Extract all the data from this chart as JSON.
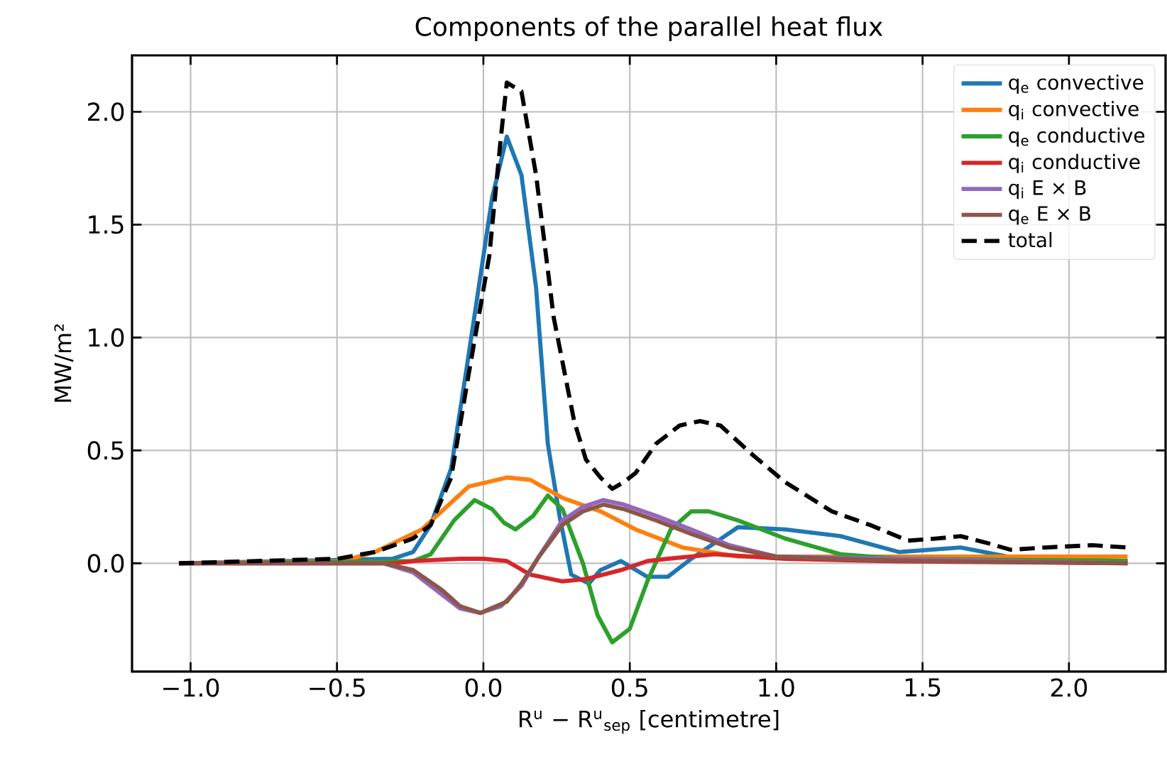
{
  "chart_data": {
    "type": "line",
    "title": "Components of the parallel heat flux",
    "xlabel": "R$^{u}$ − R$^{u}$$_{sep}$ [centimetre]",
    "ylabel": "MW/m²",
    "xlim": [
      -1.2,
      2.33
    ],
    "ylim": [
      -0.48,
      2.25
    ],
    "xticks": [
      {
        "value": -1.0,
        "label": "−1.0"
      },
      {
        "value": -0.5,
        "label": "−0.5"
      },
      {
        "value": 0.0,
        "label": "0.0"
      },
      {
        "value": 0.5,
        "label": "0.5"
      },
      {
        "value": 1.0,
        "label": "1.0"
      },
      {
        "value": 1.5,
        "label": "1.5"
      },
      {
        "value": 2.0,
        "label": "2.0"
      }
    ],
    "yticks": [
      {
        "value": 0.0,
        "label": "0.0"
      },
      {
        "value": 0.5,
        "label": "0.5"
      },
      {
        "value": 1.0,
        "label": "1.0"
      },
      {
        "value": 1.5,
        "label": "1.5"
      },
      {
        "value": 2.0,
        "label": "2.0"
      }
    ],
    "grid": true,
    "legend": "top right",
    "series": [
      {
        "name": "q$_{e}$ convective",
        "color": "#1f77b4",
        "line_style": "solid",
        "x": [
          -1.04,
          -0.31,
          -0.24,
          -0.18,
          -0.11,
          -0.06,
          0.0,
          0.03,
          0.08,
          0.13,
          0.18,
          0.22,
          0.26,
          0.3,
          0.36,
          0.4,
          0.47,
          0.56,
          0.63,
          0.71,
          0.87,
          1.03,
          1.22,
          1.42,
          1.63,
          1.79,
          2.2
        ],
        "values": [
          0,
          0.02,
          0.05,
          0.17,
          0.42,
          0.84,
          1.36,
          1.62,
          1.89,
          1.72,
          1.22,
          0.53,
          0.21,
          -0.05,
          -0.09,
          -0.03,
          0.01,
          -0.06,
          -0.06,
          0.02,
          0.16,
          0.15,
          0.12,
          0.05,
          0.07,
          0.03,
          0.01
        ]
      },
      {
        "name": "q$_{i}$ convective",
        "color": "#ff7f0e",
        "line_style": "solid",
        "x": [
          -1.04,
          -0.48,
          -0.37,
          -0.21,
          -0.05,
          0.08,
          0.16,
          0.27,
          0.4,
          0.52,
          0.68,
          0.87,
          1.51,
          2.2
        ],
        "values": [
          0,
          0.01,
          0.05,
          0.15,
          0.34,
          0.38,
          0.37,
          0.29,
          0.23,
          0.15,
          0.07,
          0.03,
          0.03,
          0.03
        ]
      },
      {
        "name": "q$_{e}$ conductive",
        "color": "#2ca02c",
        "line_style": "solid",
        "x": [
          -1.04,
          -0.24,
          -0.18,
          -0.1,
          -0.03,
          0.03,
          0.07,
          0.11,
          0.17,
          0.22,
          0.27,
          0.34,
          0.39,
          0.44,
          0.5,
          0.56,
          0.64,
          0.71,
          0.77,
          0.87,
          1.03,
          1.22,
          1.42,
          2.2
        ],
        "values": [
          0,
          0.01,
          0.04,
          0.19,
          0.28,
          0.24,
          0.18,
          0.15,
          0.21,
          0.3,
          0.24,
          0.0,
          -0.23,
          -0.35,
          -0.29,
          -0.08,
          0.15,
          0.23,
          0.23,
          0.19,
          0.11,
          0.04,
          0.02,
          0.01
        ]
      },
      {
        "name": "q$_{i}$ conductive",
        "color": "#d62728",
        "line_style": "solid",
        "x": [
          -1.04,
          -0.3,
          -0.24,
          -0.08,
          0.0,
          0.08,
          0.16,
          0.27,
          0.35,
          0.47,
          0.56,
          0.63,
          0.79,
          1.03,
          1.35,
          2.2
        ],
        "values": [
          0,
          0,
          0.01,
          0.02,
          0.02,
          0.01,
          -0.05,
          -0.08,
          -0.07,
          -0.03,
          0.01,
          0.02,
          0.04,
          0.02,
          0.01,
          0
        ]
      },
      {
        "name": "q$_{i}$ E × B",
        "color": "#9467bd",
        "line_style": "solid",
        "x": [
          -1.04,
          -0.34,
          -0.24,
          -0.14,
          -0.08,
          -0.01,
          0.06,
          0.13,
          0.19,
          0.27,
          0.34,
          0.41,
          0.48,
          0.59,
          0.71,
          0.84,
          1.0,
          2.2
        ],
        "values": [
          0,
          0,
          -0.04,
          -0.14,
          -0.2,
          -0.22,
          -0.19,
          -0.1,
          0.03,
          0.19,
          0.25,
          0.28,
          0.26,
          0.21,
          0.15,
          0.08,
          0.03,
          0
        ]
      },
      {
        "name": "q$_{e}$ E × B",
        "color": "#8c564b",
        "line_style": "solid",
        "x": [
          -1.04,
          -0.34,
          -0.24,
          -0.14,
          -0.08,
          -0.01,
          0.08,
          0.13,
          0.19,
          0.27,
          0.34,
          0.41,
          0.48,
          0.59,
          0.71,
          0.84,
          1.0,
          1.19,
          1.51,
          2.2
        ],
        "values": [
          0,
          0,
          -0.03,
          -0.12,
          -0.19,
          -0.22,
          -0.17,
          -0.09,
          0.03,
          0.17,
          0.23,
          0.26,
          0.24,
          0.19,
          0.13,
          0.07,
          0.03,
          0.02,
          0.01,
          0
        ]
      },
      {
        "name": "total",
        "color": "#000000",
        "line_style": "dashed",
        "x": [
          -1.04,
          -0.5,
          -0.37,
          -0.24,
          -0.18,
          -0.11,
          -0.05,
          0.02,
          0.06,
          0.08,
          0.13,
          0.18,
          0.24,
          0.31,
          0.35,
          0.4,
          0.44,
          0.48,
          0.52,
          0.59,
          0.67,
          0.74,
          0.81,
          0.92,
          1.03,
          1.19,
          1.32,
          1.45,
          1.55,
          1.63,
          1.72,
          1.8,
          1.92,
          2.08,
          2.2
        ],
        "values": [
          0,
          0.02,
          0.05,
          0.11,
          0.17,
          0.38,
          0.84,
          1.36,
          1.89,
          2.13,
          2.09,
          1.72,
          1.09,
          0.63,
          0.46,
          0.38,
          0.33,
          0.36,
          0.4,
          0.53,
          0.61,
          0.63,
          0.61,
          0.48,
          0.36,
          0.23,
          0.17,
          0.1,
          0.11,
          0.12,
          0.09,
          0.06,
          0.07,
          0.08,
          0.07
        ]
      }
    ]
  }
}
